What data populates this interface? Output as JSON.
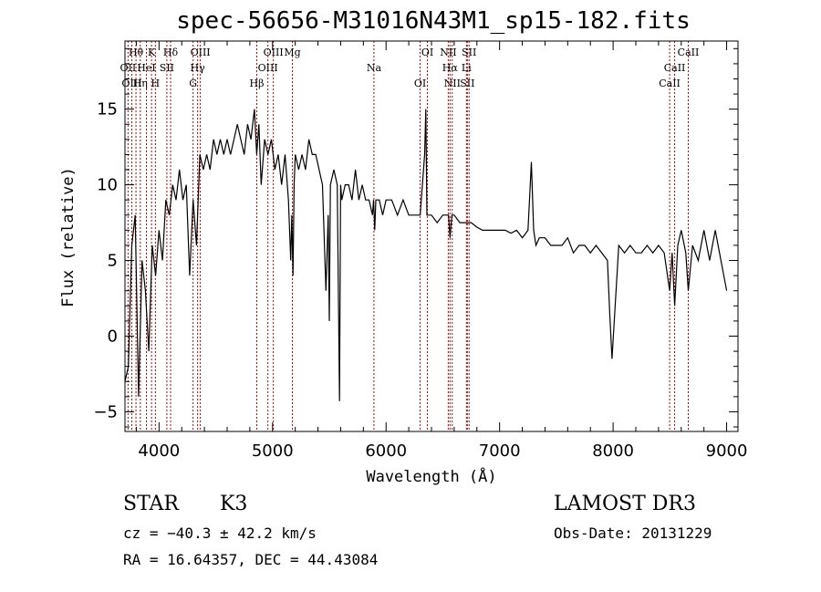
{
  "title": "spec-56656-M31016N43M1_sp15-182.fits",
  "chart_data": {
    "type": "line",
    "title": "spec-56656-M31016N43M1_sp15-182.fits",
    "xlabel": "Wavelength (Å)",
    "ylabel": "Flux (relative)",
    "xlim": [
      3700,
      9100
    ],
    "ylim": [
      -6.3,
      19.5
    ],
    "xticks": [
      4000,
      5000,
      6000,
      7000,
      8000,
      9000
    ],
    "yticks": [
      -5,
      0,
      5,
      10,
      15
    ],
    "series": [
      {
        "name": "flux",
        "x": [
          3700,
          3730,
          3760,
          3790,
          3820,
          3850,
          3880,
          3910,
          3940,
          3970,
          4000,
          4030,
          4060,
          4090,
          4120,
          4150,
          4180,
          4210,
          4240,
          4270,
          4300,
          4330,
          4360,
          4390,
          4420,
          4450,
          4480,
          4510,
          4540,
          4570,
          4600,
          4630,
          4660,
          4690,
          4720,
          4750,
          4780,
          4810,
          4840,
          4860,
          4880,
          4900,
          4930,
          4960,
          4990,
          5020,
          5050,
          5080,
          5110,
          5140,
          5160,
          5170,
          5180,
          5190,
          5200,
          5230,
          5260,
          5290,
          5320,
          5350,
          5380,
          5410,
          5440,
          5470,
          5490,
          5500,
          5510,
          5540,
          5570,
          5590,
          5600,
          5610,
          5640,
          5670,
          5700,
          5730,
          5760,
          5790,
          5820,
          5850,
          5880,
          5890,
          5900,
          5910,
          5940,
          5970,
          6000,
          6050,
          6100,
          6150,
          6200,
          6250,
          6300,
          6340,
          6350,
          6360,
          6400,
          6450,
          6500,
          6550,
          6563,
          6580,
          6600,
          6650,
          6700,
          6750,
          6800,
          6850,
          6900,
          6950,
          7000,
          7050,
          7100,
          7150,
          7200,
          7250,
          7280,
          7300,
          7320,
          7350,
          7400,
          7450,
          7500,
          7550,
          7600,
          7650,
          7700,
          7750,
          7800,
          7850,
          7900,
          7950,
          7970,
          7990,
          8050,
          8100,
          8150,
          8200,
          8250,
          8300,
          8350,
          8400,
          8450,
          8498,
          8520,
          8542,
          8570,
          8600,
          8640,
          8662,
          8700,
          8750,
          8800,
          8850,
          8900,
          8950,
          9000
        ],
        "values": [
          -3,
          -2,
          6,
          8,
          -4,
          5,
          3,
          -1,
          6,
          4,
          7,
          5,
          9,
          8,
          10,
          9,
          11,
          9,
          10,
          4,
          9,
          6,
          12,
          11,
          12,
          11,
          13,
          12,
          13,
          12,
          13,
          12,
          13,
          14,
          13,
          12,
          14,
          13,
          15,
          12,
          14,
          10,
          13,
          12,
          13,
          11,
          12,
          10,
          12,
          9,
          5,
          8,
          4,
          10,
          12,
          11,
          12,
          11,
          13,
          12,
          12,
          11,
          10,
          3,
          8,
          1,
          10,
          11,
          10,
          -4.3,
          10,
          9,
          10,
          10,
          9,
          11,
          9,
          10,
          9,
          9,
          8,
          9,
          7,
          9,
          9,
          8,
          9,
          9,
          8,
          9,
          8,
          8,
          8,
          12,
          15,
          8,
          8,
          7.5,
          8,
          8,
          6.5,
          8,
          8,
          7.5,
          7.5,
          7.5,
          7.2,
          7,
          7,
          7,
          7,
          7,
          6.8,
          7,
          6.5,
          7,
          11.5,
          7,
          6,
          6.5,
          6.5,
          6,
          6,
          6,
          6.5,
          5.5,
          6,
          6,
          5.5,
          6,
          5.5,
          5,
          1.5,
          -1.5,
          6,
          5.5,
          6,
          5.5,
          5.5,
          6,
          5.5,
          6,
          5.5,
          3,
          5.5,
          2,
          6,
          7,
          5.5,
          3,
          6,
          5,
          7,
          5,
          7,
          5,
          3
        ]
      }
    ],
    "lines": [
      {
        "label": "Hθ",
        "wave": 3797
      },
      {
        "label": "OII",
        "wave": 3727
      },
      {
        "label": "OIII",
        "wave": 3760
      },
      {
        "label": "K",
        "wave": 3934
      },
      {
        "label": "HeI",
        "wave": 3889
      },
      {
        "label": "Hη",
        "wave": 3835
      },
      {
        "label": "Hδ",
        "wave": 4102
      },
      {
        "label": "SII",
        "wave": 4069
      },
      {
        "label": "H",
        "wave": 3968
      },
      {
        "label": "OIII",
        "wave": 4364
      },
      {
        "label": "Hγ",
        "wave": 4340
      },
      {
        "label": "G",
        "wave": 4300
      },
      {
        "label": "OIII",
        "wave": 5007
      },
      {
        "label": "OIII",
        "wave": 4959
      },
      {
        "label": "Hβ",
        "wave": 4861
      },
      {
        "label": "Mg",
        "wave": 5175
      },
      {
        "label": "Na",
        "wave": 5893
      },
      {
        "label": "OI",
        "wave": 6300
      },
      {
        "label": "OI",
        "wave": 6364
      },
      {
        "label": "Hα",
        "wave": 6563
      },
      {
        "label": "SII",
        "wave": 6716
      },
      {
        "label": "NII",
        "wave": 6548
      },
      {
        "label": "Li",
        "wave": 6708
      },
      {
        "label": "NII",
        "wave": 6583
      },
      {
        "label": "SII",
        "wave": 6731
      },
      {
        "label": "CaII",
        "wave": 8542
      },
      {
        "label": "CaII",
        "wave": 8498
      },
      {
        "label": "CaII",
        "wave": 8662
      }
    ]
  },
  "info": {
    "class_label": "STAR",
    "subclass": "K3",
    "survey": "LAMOST DR3",
    "redshift": "cz = −40.3 ± 42.2 km/s",
    "obsdate": "Obs-Date: 20131229",
    "coords": "RA =  16.64357, DEC =  44.43084"
  },
  "colors": {
    "line_marker": "#c00000",
    "spectrum": "#000000"
  }
}
